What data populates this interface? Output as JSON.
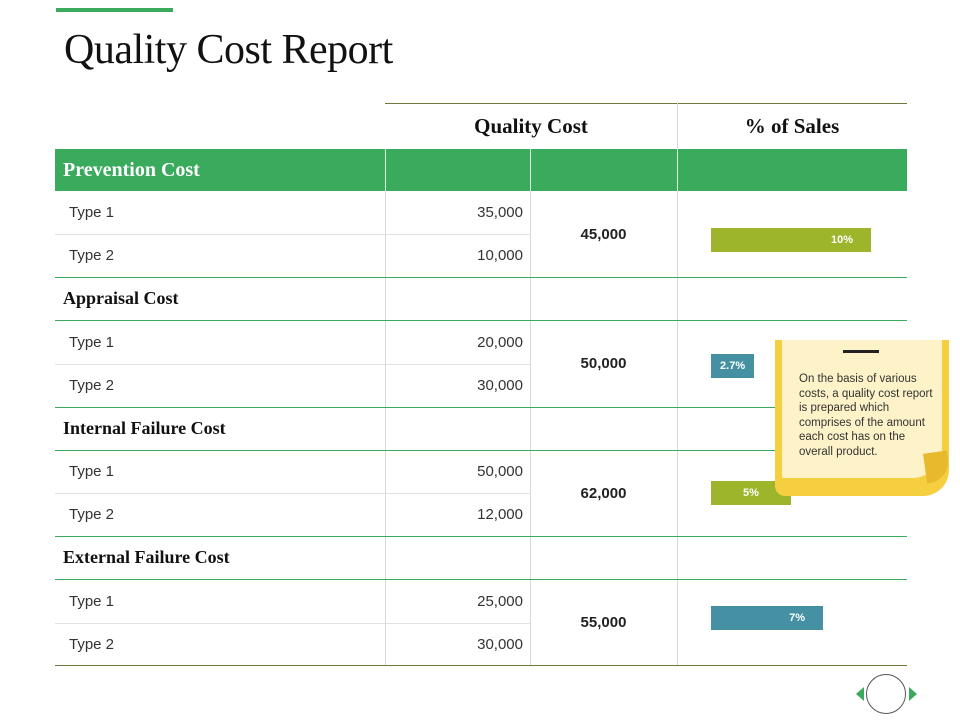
{
  "title": "Quality Cost Report",
  "colors": {
    "accent": "#3aaa5c",
    "bar_green": "#9cb52a",
    "bar_teal": "#4591a3",
    "note": "#f5cf3f"
  },
  "columns": {
    "quality_cost": "Quality Cost",
    "pct_sales": "% of Sales"
  },
  "sections": [
    {
      "label": "Prevention Cost",
      "rows": [
        {
          "type": "Type 1",
          "value": "35,000"
        },
        {
          "type": "Type 2",
          "value": "10,000"
        }
      ],
      "total": "45,000",
      "pct": "10%",
      "pct_value": 10
    },
    {
      "label": "Appraisal Cost",
      "rows": [
        {
          "type": "Type 1",
          "value": "20,000"
        },
        {
          "type": "Type 2",
          "value": "30,000"
        }
      ],
      "total": "50,000",
      "pct": "2.7%",
      "pct_value": 2.7
    },
    {
      "label": "Internal Failure Cost",
      "rows": [
        {
          "type": "Type 1",
          "value": "50,000"
        },
        {
          "type": "Type 2",
          "value": "12,000"
        }
      ],
      "total": "62,000",
      "pct": "5%",
      "pct_value": 5
    },
    {
      "label": "External Failure Cost",
      "rows": [
        {
          "type": "Type 1",
          "value": "25,000"
        },
        {
          "type": "Type 2",
          "value": "30,000"
        }
      ],
      "total": "55,000",
      "pct": "7%",
      "pct_value": 7
    }
  ],
  "note": {
    "text": "On the basis of various costs, a quality cost report is prepared which comprises of the amount each cost has on the overall product."
  },
  "nav": {
    "prev_icon": "triangle-left-icon",
    "home_icon": "circle-icon",
    "next_icon": "triangle-right-icon"
  }
}
